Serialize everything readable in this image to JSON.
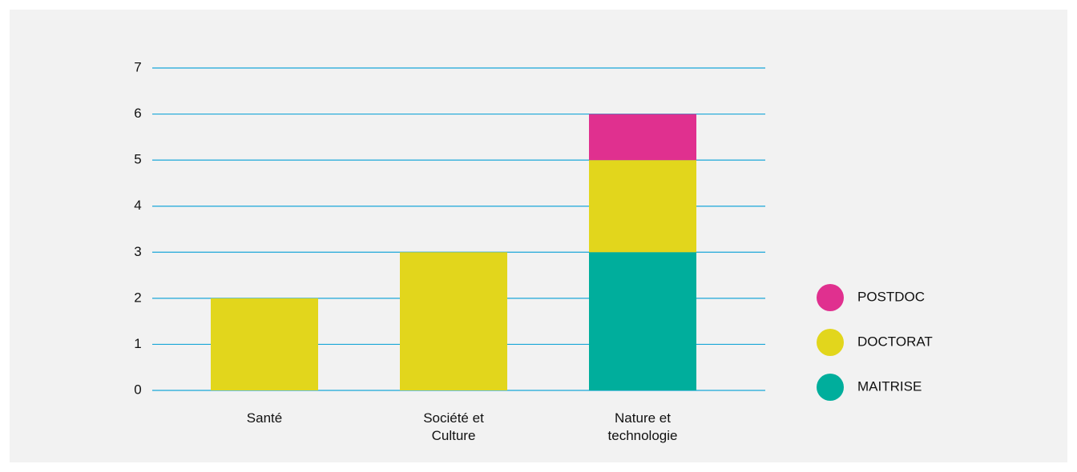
{
  "chart_data": {
    "type": "bar",
    "stacked": true,
    "categories": [
      "Santé",
      "Société et Culture",
      "Nature et technologie"
    ],
    "series": [
      {
        "name": "MAITRISE",
        "color": "#00ae9c",
        "values": [
          0,
          0,
          3
        ]
      },
      {
        "name": "DOCTORAT",
        "color": "#e2d61c",
        "values": [
          2,
          3,
          2
        ]
      },
      {
        "name": "POSTDOC",
        "color": "#e0308f",
        "values": [
          0,
          0,
          1
        ]
      }
    ],
    "ylim": [
      0,
      7
    ],
    "yticks": [
      0,
      1,
      2,
      3,
      4,
      5,
      6,
      7
    ],
    "grid": true,
    "grid_color": "#1aa7d8",
    "legend": "right"
  }
}
